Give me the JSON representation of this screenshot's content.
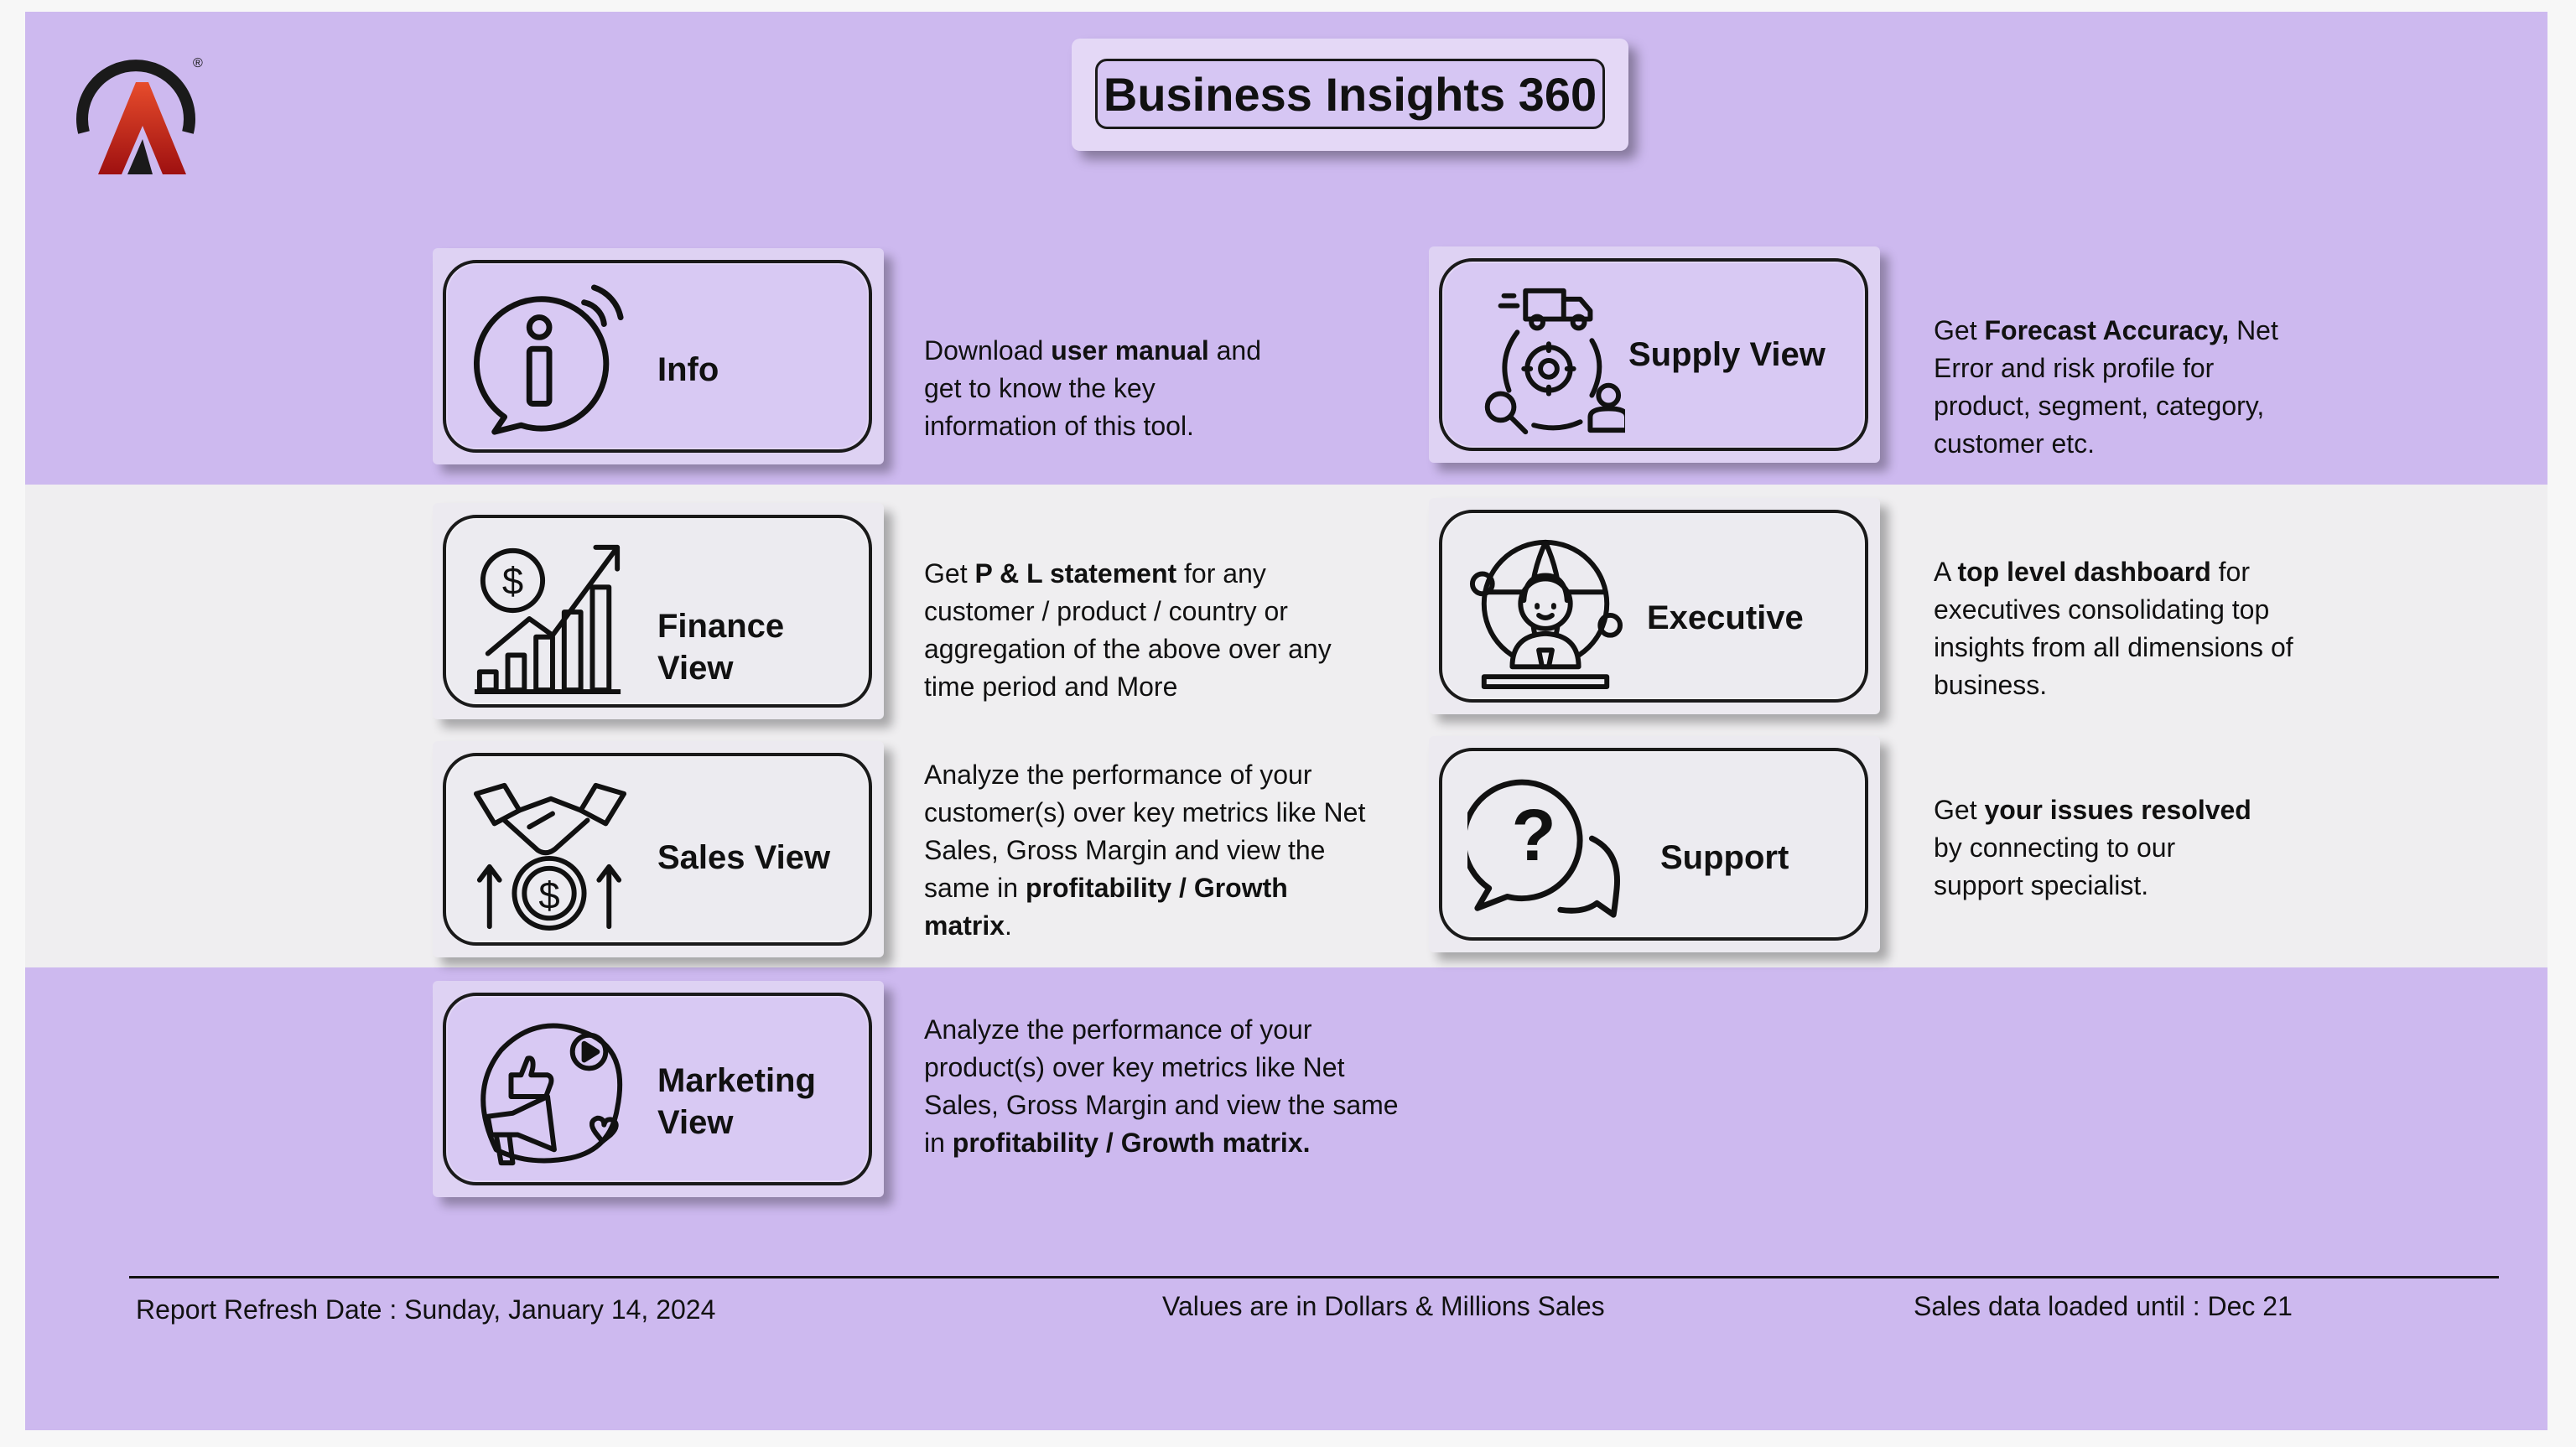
{
  "header": {
    "title": "Business Insights 360"
  },
  "logo": {
    "name": "atliq-logo-icon",
    "registered": "®"
  },
  "colors": {
    "background": "#cdb9ef",
    "band": "#efeef0",
    "accent": "#c0392b"
  },
  "cards": {
    "info": {
      "label": "Info",
      "icon": "info-icon"
    },
    "finance": {
      "label": "Finance View",
      "icon": "finance-growth-icon"
    },
    "sales": {
      "label": "Sales View",
      "icon": "handshake-dollar-icon"
    },
    "marketing": {
      "label_1": "Marketing",
      "label_2": "View",
      "icon": "marketing-megaphone-icon"
    },
    "supply": {
      "label": "Supply View",
      "icon": "supply-chain-icon"
    },
    "executive": {
      "label": "Executive",
      "icon": "executive-globe-icon"
    },
    "support": {
      "label": "Support",
      "icon": "support-chat-icon"
    }
  },
  "descriptions": {
    "info": {
      "t1": "Download ",
      "b1": "user manual",
      "t2": " and",
      "line2": "get to know the key",
      "line3": "information of this tool."
    },
    "finance": {
      "t1": "Get  ",
      "b1": "P & L statement",
      "t2": " for any",
      "line2": "customer / product / country or",
      "line3": "aggregation of the above over any",
      "line4": "time period and More"
    },
    "sales": {
      "line1": "Analyze the performance of your",
      "line2": "customer(s) over key metrics like Net",
      "line3": "Sales, Gross Margin and view the",
      "t4": "same in ",
      "b4": "profitability / Growth",
      "b5": "matrix",
      "t5": "."
    },
    "marketing": {
      "line1": "Analyze the performance of your",
      "line2": "product(s) over key metrics like Net",
      "line3": "Sales, Gross Margin and view the same",
      "t4": "in ",
      "b4": "profitability / Growth matrix."
    },
    "supply": {
      "t1": "Get ",
      "b1": "Forecast Accuracy,",
      "t2": " Net",
      "line2": "Error and risk profile for",
      "line3": "product, segment, category,",
      "line4": "customer etc."
    },
    "executive": {
      "t1": "A ",
      "b1": "top level dashboard",
      "t2": " for",
      "line2": "executives consolidating top",
      "line3": "insights from all dimensions of",
      "line4": "business."
    },
    "support": {
      "t1": "Get ",
      "b1": "your issues resolved",
      "line2": "by connecting to our",
      "line3": "support specialist."
    }
  },
  "footer": {
    "refresh_label": "Report Refresh Date : ",
    "refresh_date": "Sunday, January 14, 2024",
    "units": "Values are in Dollars & Millions Sales",
    "loaded": "Sales data loaded until : Dec 21"
  }
}
